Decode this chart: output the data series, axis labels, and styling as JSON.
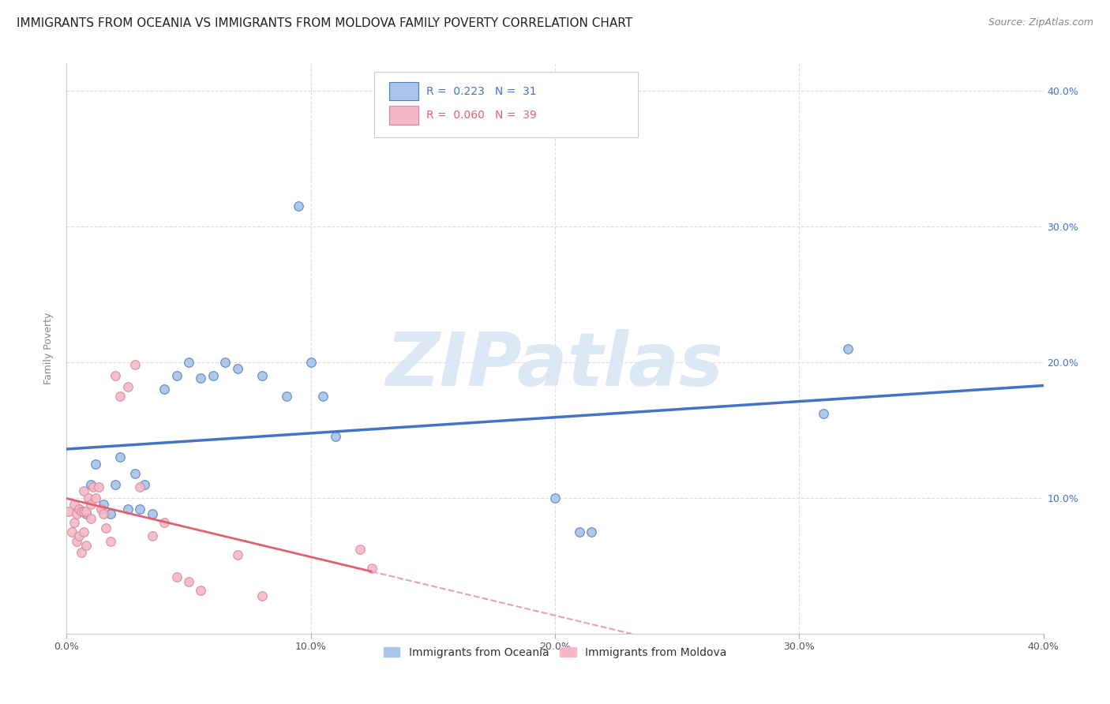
{
  "title": "IMMIGRANTS FROM OCEANIA VS IMMIGRANTS FROM MOLDOVA FAMILY POVERTY CORRELATION CHART",
  "source": "Source: ZipAtlas.com",
  "ylabel": "Family Poverty",
  "xlim": [
    0,
    0.4
  ],
  "ylim": [
    0,
    0.42
  ],
  "xticks": [
    0.0,
    0.1,
    0.2,
    0.3,
    0.4
  ],
  "yticks": [
    0.0,
    0.1,
    0.2,
    0.3,
    0.4
  ],
  "xticklabels": [
    "0.0%",
    "10.0%",
    "20.0%",
    "30.0%",
    "40.0%"
  ],
  "right_yticklabels": [
    "",
    "10.0%",
    "20.0%",
    "30.0%",
    "40.0%"
  ],
  "legend_series": [
    {
      "label": "Immigrants from Oceania",
      "color": "#a8c4e8",
      "R": "0.223",
      "N": "31"
    },
    {
      "label": "Immigrants from Moldova",
      "color": "#f5b8c8",
      "R": "0.060",
      "N": "39"
    }
  ],
  "oceania_x": [
    0.005,
    0.008,
    0.01,
    0.012,
    0.015,
    0.018,
    0.02,
    0.022,
    0.025,
    0.028,
    0.03,
    0.032,
    0.035,
    0.04,
    0.045,
    0.05,
    0.055,
    0.06,
    0.065,
    0.07,
    0.08,
    0.09,
    0.095,
    0.1,
    0.105,
    0.11,
    0.2,
    0.21,
    0.215,
    0.31,
    0.32
  ],
  "oceania_y": [
    0.092,
    0.088,
    0.11,
    0.125,
    0.095,
    0.088,
    0.11,
    0.13,
    0.092,
    0.118,
    0.092,
    0.11,
    0.088,
    0.18,
    0.19,
    0.2,
    0.188,
    0.19,
    0.2,
    0.195,
    0.19,
    0.175,
    0.315,
    0.2,
    0.175,
    0.145,
    0.1,
    0.075,
    0.075,
    0.162,
    0.21
  ],
  "moldova_x": [
    0.001,
    0.002,
    0.003,
    0.003,
    0.004,
    0.004,
    0.005,
    0.005,
    0.006,
    0.006,
    0.007,
    0.007,
    0.007,
    0.008,
    0.008,
    0.009,
    0.01,
    0.01,
    0.011,
    0.012,
    0.013,
    0.014,
    0.015,
    0.016,
    0.018,
    0.02,
    0.022,
    0.025,
    0.028,
    0.03,
    0.035,
    0.04,
    0.045,
    0.05,
    0.055,
    0.07,
    0.08,
    0.12,
    0.125
  ],
  "moldova_y": [
    0.09,
    0.075,
    0.082,
    0.095,
    0.068,
    0.088,
    0.072,
    0.092,
    0.06,
    0.09,
    0.075,
    0.09,
    0.105,
    0.065,
    0.09,
    0.1,
    0.085,
    0.095,
    0.108,
    0.1,
    0.108,
    0.092,
    0.088,
    0.078,
    0.068,
    0.19,
    0.175,
    0.182,
    0.198,
    0.108,
    0.072,
    0.082,
    0.042,
    0.038,
    0.032,
    0.058,
    0.028,
    0.062,
    0.048
  ],
  "background_color": "#ffffff",
  "grid_color": "#dddddd",
  "oceania_line_color": "#4472c4",
  "moldova_solid_color": "#e06070",
  "moldova_dash_color": "#e8a0b0",
  "watermark_color": "#dce8f5",
  "title_fontsize": 11,
  "tick_fontsize": 9,
  "marker_size": 70,
  "oceania_marker_color": "#a8c4e8",
  "moldova_marker_color": "#f5b8c8",
  "oceania_edge_color": "#5080c0",
  "moldova_edge_color": "#d08898"
}
